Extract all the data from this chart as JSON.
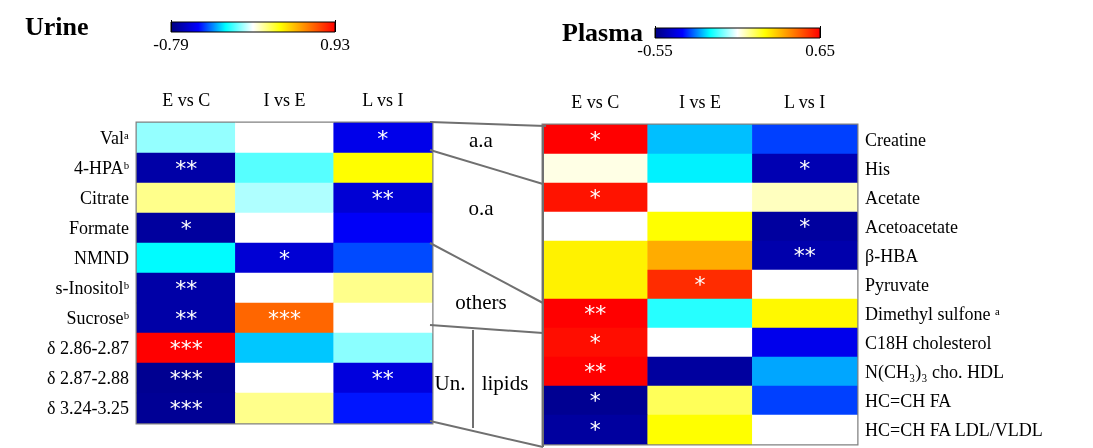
{
  "chart_data": [
    {
      "type": "heatmap",
      "title": "Urine",
      "categories": [
        "E vs C",
        "I vs E",
        "L vs I"
      ],
      "y_categories": [
        "Valᵃ",
        "4-HPAᵇ",
        "Citrate",
        "Formate",
        "NMND",
        "s-Inositolᵇ",
        "Sucroseᵇ",
        "δ 2.86-2.87",
        "δ 2.87-2.88",
        "δ 3.24-3.25"
      ],
      "cells": [
        [
          -0.05,
          0.07,
          -0.55
        ],
        [
          -0.7,
          -0.12,
          0.36
        ],
        [
          0.2,
          -0.02,
          -0.6
        ],
        [
          -0.72,
          0.07,
          -0.52
        ],
        [
          -0.22,
          -0.6,
          -0.42
        ],
        [
          -0.7,
          0.07,
          0.2
        ],
        [
          -0.7,
          0.7,
          0.07
        ],
        [
          0.93,
          -0.28,
          -0.06
        ],
        [
          -0.75,
          0.07,
          -0.58
        ],
        [
          -0.74,
          0.2,
          -0.48
        ]
      ],
      "cell_labels": [
        [
          null,
          null,
          "*"
        ],
        [
          "**",
          null,
          null
        ],
        [
          null,
          null,
          "**"
        ],
        [
          "*",
          null,
          null
        ],
        [
          null,
          "*",
          null
        ],
        [
          "**",
          null,
          null
        ],
        [
          "**",
          "***",
          null
        ],
        [
          "***",
          null,
          null
        ],
        [
          "***",
          null,
          "**"
        ],
        [
          "***",
          null,
          null
        ]
      ],
      "clim": [
        -0.79,
        0.93
      ],
      "cticks": [
        -0.79,
        0.93
      ],
      "annotations": [
        "a.a",
        "o.a",
        "others",
        "Un.",
        "lipids"
      ]
    },
    {
      "type": "heatmap",
      "title": "Plasma",
      "categories": [
        "E vs C",
        "I vs E",
        "L vs I"
      ],
      "y_categories": [
        "Creatine",
        "His",
        "Acetate",
        "Acetoacetate",
        "β-HBA",
        "Pyruvate",
        "Dimethyl sulfone ᵃ",
        "C18H cholesterol",
        "N(CH₃)₃ cho. HDL",
        "HC=CH FA",
        "HC=CH FA LDL/VLDL"
      ],
      "cells": [
        [
          0.65,
          -0.2,
          -0.3
        ],
        [
          0.07,
          -0.16,
          -0.47
        ],
        [
          0.62,
          0.05,
          0.1
        ],
        [
          0.05,
          0.25,
          -0.5
        ],
        [
          0.27,
          0.38,
          -0.48
        ],
        [
          0.27,
          0.58,
          0.05
        ],
        [
          0.65,
          -0.12,
          0.26
        ],
        [
          0.63,
          0.05,
          -0.38
        ],
        [
          0.65,
          -0.5,
          -0.22
        ],
        [
          -0.52,
          0.18,
          -0.3
        ],
        [
          -0.5,
          0.25,
          0.05
        ]
      ],
      "cell_labels": [
        [
          "*",
          null,
          null
        ],
        [
          null,
          null,
          "*"
        ],
        [
          "*",
          null,
          null
        ],
        [
          null,
          null,
          "*"
        ],
        [
          null,
          null,
          "**"
        ],
        [
          null,
          "*",
          null
        ],
        [
          "**",
          null,
          null
        ],
        [
          "*",
          null,
          null
        ],
        [
          "**",
          null,
          null
        ],
        [
          "*",
          null,
          null
        ],
        [
          "*",
          null,
          null
        ]
      ],
      "clim": [
        -0.55,
        0.65
      ],
      "cticks": [
        -0.55,
        0.65
      ]
    }
  ]
}
